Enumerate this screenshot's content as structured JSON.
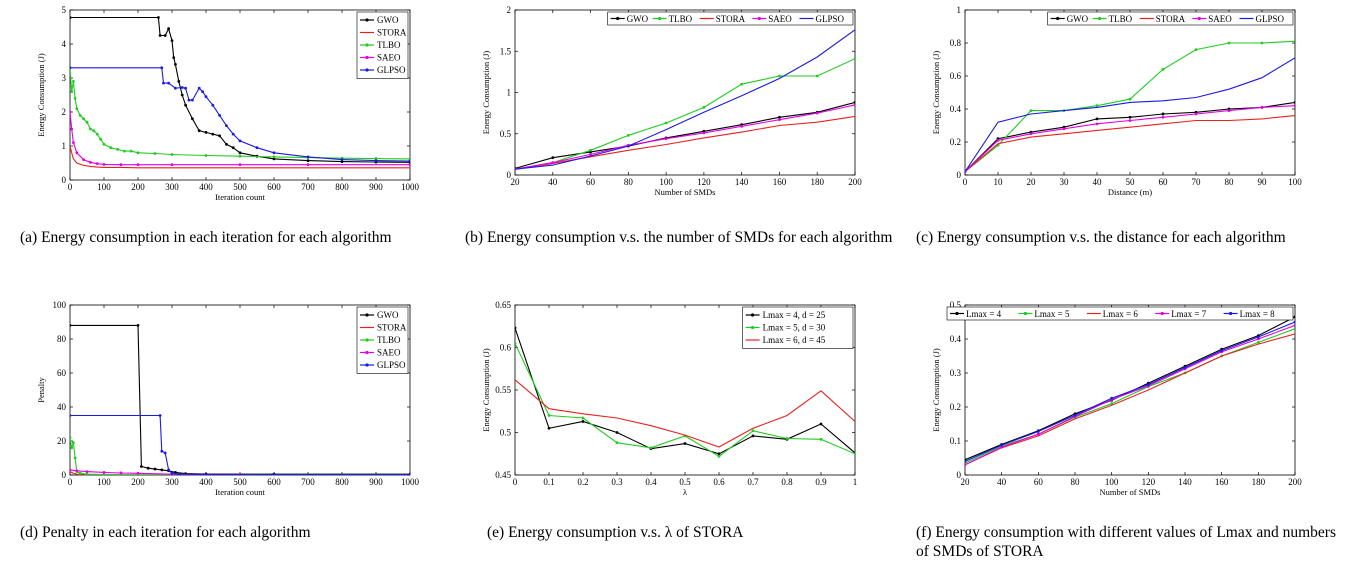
{
  "chart_data": [
    {
      "id": "a",
      "type": "line",
      "caption": "(a) Energy consumption in each iteration for each algorithm",
      "xlabel": "Iteration count",
      "ylabel": "Energy Consumption (J)",
      "xlim": [
        0,
        1000
      ],
      "ylim": [
        0,
        5
      ],
      "xticks": [
        0,
        100,
        200,
        300,
        400,
        500,
        600,
        700,
        800,
        900,
        1000
      ],
      "yticks": [
        0,
        1,
        2,
        3,
        4,
        5
      ],
      "legend_position": "top-right",
      "series": [
        {
          "name": "GWO",
          "color": "#000000",
          "marker": "dot",
          "x": [
            0,
            260,
            265,
            280,
            290,
            300,
            305,
            310,
            320,
            330,
            340,
            360,
            380,
            400,
            420,
            440,
            460,
            480,
            500,
            550,
            600,
            700,
            800,
            900,
            1000
          ],
          "y": [
            4.78,
            4.78,
            4.25,
            4.25,
            4.45,
            4.1,
            3.6,
            3.4,
            2.9,
            2.5,
            2.2,
            1.8,
            1.45,
            1.4,
            1.35,
            1.3,
            1.05,
            0.95,
            0.8,
            0.7,
            0.62,
            0.57,
            0.54,
            0.53,
            0.52
          ]
        },
        {
          "name": "STORA",
          "color": "#e8211f",
          "marker": "none",
          "x": [
            0,
            5,
            10,
            20,
            40,
            60,
            80,
            100,
            150,
            200,
            300,
            500,
            700,
            1000
          ],
          "y": [
            1.0,
            0.8,
            0.62,
            0.5,
            0.43,
            0.4,
            0.38,
            0.37,
            0.37,
            0.36,
            0.36,
            0.36,
            0.36,
            0.36
          ]
        },
        {
          "name": "TLBO",
          "color": "#1fcc1f",
          "marker": "dot",
          "x": [
            0,
            5,
            10,
            15,
            20,
            30,
            40,
            50,
            60,
            70,
            80,
            90,
            100,
            120,
            140,
            160,
            180,
            200,
            250,
            300,
            400,
            500,
            600,
            700,
            800,
            900,
            1000
          ],
          "y": [
            3.3,
            2.6,
            2.9,
            2.4,
            2.1,
            1.9,
            1.8,
            1.7,
            1.5,
            1.45,
            1.35,
            1.2,
            1.05,
            0.95,
            0.9,
            0.85,
            0.85,
            0.8,
            0.78,
            0.75,
            0.72,
            0.7,
            0.68,
            0.66,
            0.64,
            0.63,
            0.62
          ]
        },
        {
          "name": "SAEO",
          "color": "#e600e6",
          "marker": "dot",
          "x": [
            0,
            5,
            10,
            20,
            40,
            60,
            80,
            100,
            150,
            200,
            300,
            500,
            700,
            1000
          ],
          "y": [
            2.0,
            1.5,
            1.1,
            0.8,
            0.6,
            0.52,
            0.48,
            0.46,
            0.45,
            0.45,
            0.45,
            0.45,
            0.45,
            0.45
          ]
        },
        {
          "name": "GLPSO",
          "color": "#1a1ae6",
          "marker": "dot",
          "x": [
            0,
            270,
            275,
            290,
            310,
            330,
            340,
            350,
            360,
            380,
            390,
            400,
            420,
            440,
            460,
            480,
            500,
            550,
            600,
            700,
            800,
            900,
            1000
          ],
          "y": [
            3.3,
            3.3,
            2.85,
            2.85,
            2.7,
            2.72,
            2.7,
            2.35,
            2.35,
            2.7,
            2.6,
            2.45,
            2.2,
            1.9,
            1.6,
            1.35,
            1.15,
            0.95,
            0.8,
            0.68,
            0.6,
            0.57,
            0.56
          ]
        }
      ]
    },
    {
      "id": "b",
      "type": "line",
      "caption": "(b) Energy consumption v.s. the number of SMDs for each algorithm",
      "xlabel": "Number of SMDs",
      "ylabel": "Energy Consumption (J)",
      "xlim": [
        20,
        200
      ],
      "ylim": [
        0,
        2
      ],
      "xticks": [
        20,
        40,
        60,
        80,
        100,
        120,
        140,
        160,
        180,
        200
      ],
      "yticks": [
        0,
        0.5,
        1,
        1.5,
        2
      ],
      "legend_position": "top (horizontal)",
      "x": [
        20,
        40,
        60,
        80,
        100,
        120,
        140,
        160,
        180,
        200
      ],
      "series": [
        {
          "name": "GWO",
          "color": "#000000",
          "marker": "dot",
          "values": [
            0.08,
            0.21,
            0.28,
            0.35,
            0.45,
            0.53,
            0.61,
            0.7,
            0.76,
            0.88
          ]
        },
        {
          "name": "TLBO",
          "color": "#1fcc1f",
          "marker": "dot",
          "values": [
            0.07,
            0.15,
            0.3,
            0.48,
            0.63,
            0.82,
            1.1,
            1.2,
            1.2,
            1.41
          ]
        },
        {
          "name": "STORA",
          "color": "#e8211f",
          "marker": "none",
          "values": [
            0.07,
            0.14,
            0.22,
            0.3,
            0.37,
            0.45,
            0.52,
            0.6,
            0.64,
            0.71
          ]
        },
        {
          "name": "SAEO",
          "color": "#e600e6",
          "marker": "dot",
          "values": [
            0.07,
            0.15,
            0.25,
            0.36,
            0.44,
            0.51,
            0.59,
            0.67,
            0.75,
            0.85
          ]
        },
        {
          "name": "GLPSO",
          "color": "#1a1ae6",
          "marker": "none",
          "values": [
            0.07,
            0.12,
            0.23,
            0.35,
            0.55,
            0.76,
            0.96,
            1.17,
            1.43,
            1.76
          ]
        }
      ]
    },
    {
      "id": "c",
      "type": "line",
      "caption": "(c) Energy consumption v.s. the distance for each algorithm",
      "xlabel": "Distance (m)",
      "ylabel": "Energy Consumption (J)",
      "xlim": [
        0,
        100
      ],
      "ylim": [
        0,
        1
      ],
      "xticks": [
        0,
        10,
        20,
        30,
        40,
        50,
        60,
        70,
        80,
        90,
        100
      ],
      "yticks": [
        0,
        0.2,
        0.4,
        0.6,
        0.8,
        1
      ],
      "legend_position": "top (horizontal)",
      "x": [
        0,
        10,
        20,
        30,
        40,
        50,
        60,
        70,
        80,
        90,
        100
      ],
      "series": [
        {
          "name": "GWO",
          "color": "#000000",
          "marker": "dot",
          "values": [
            0.02,
            0.22,
            0.26,
            0.29,
            0.34,
            0.35,
            0.37,
            0.38,
            0.4,
            0.41,
            0.44
          ]
        },
        {
          "name": "TLBO",
          "color": "#1fcc1f",
          "marker": "dot",
          "values": [
            0.02,
            0.18,
            0.39,
            0.39,
            0.42,
            0.46,
            0.64,
            0.76,
            0.8,
            0.8,
            0.81
          ]
        },
        {
          "name": "STORA",
          "color": "#e8211f",
          "marker": "none",
          "values": [
            0.02,
            0.19,
            0.23,
            0.25,
            0.27,
            0.29,
            0.31,
            0.33,
            0.33,
            0.34,
            0.36
          ]
        },
        {
          "name": "SAEO",
          "color": "#e600e6",
          "marker": "dot",
          "values": [
            0.02,
            0.21,
            0.25,
            0.28,
            0.31,
            0.33,
            0.35,
            0.37,
            0.39,
            0.41,
            0.42
          ]
        },
        {
          "name": "GLPSO",
          "color": "#1a1ae6",
          "marker": "none",
          "values": [
            0.02,
            0.32,
            0.37,
            0.39,
            0.41,
            0.44,
            0.45,
            0.47,
            0.52,
            0.59,
            0.71
          ]
        }
      ]
    },
    {
      "id": "d",
      "type": "line",
      "caption": "(d) Penalty in each iteration for each algorithm",
      "xlabel": "Iteration count",
      "ylabel": "Penalty",
      "xlim": [
        0,
        1000
      ],
      "ylim": [
        0,
        100
      ],
      "xticks": [
        0,
        100,
        200,
        300,
        400,
        500,
        600,
        700,
        800,
        900,
        1000
      ],
      "yticks": [
        0,
        20,
        40,
        60,
        80,
        100
      ],
      "legend_position": "top-right",
      "series": [
        {
          "name": "GWO",
          "color": "#000000",
          "marker": "dot",
          "x": [
            0,
            200,
            210,
            230,
            250,
            270,
            290,
            310,
            340,
            400,
            600,
            1000
          ],
          "y": [
            88,
            88,
            5,
            4,
            3.5,
            3,
            2.5,
            1.5,
            0.8,
            0.6,
            0.5,
            0.5
          ]
        },
        {
          "name": "STORA",
          "color": "#e8211f",
          "marker": "none",
          "x": [
            0,
            5,
            10,
            20,
            50,
            100,
            200,
            1000
          ],
          "y": [
            2,
            1.5,
            1,
            0.5,
            0.2,
            0.1,
            0,
            0
          ]
        },
        {
          "name": "TLBO",
          "color": "#1fcc1f",
          "marker": "dot",
          "x": [
            0,
            5,
            10,
            15,
            20,
            30,
            50,
            100,
            200,
            400,
            1000
          ],
          "y": [
            22,
            16,
            19,
            10,
            2,
            1,
            0.5,
            0.3,
            0.2,
            0.1,
            0.1
          ]
        },
        {
          "name": "SAEO",
          "color": "#e600e6",
          "marker": "dot",
          "x": [
            0,
            20,
            50,
            100,
            150,
            200,
            300,
            500,
            1000
          ],
          "y": [
            3,
            2.5,
            2,
            1.5,
            1.2,
            1,
            0.5,
            0.3,
            0.3
          ]
        },
        {
          "name": "GLPSO",
          "color": "#1a1ae6",
          "marker": "dot",
          "x": [
            0,
            265,
            270,
            280,
            290,
            300,
            320,
            400,
            600,
            1000
          ],
          "y": [
            35,
            35,
            14,
            13,
            3,
            1,
            0.5,
            0.3,
            0.3,
            0.3
          ]
        }
      ]
    },
    {
      "id": "e",
      "type": "line",
      "caption": "(e) Energy consumption v.s. λ of STORA",
      "xlabel": "λ",
      "ylabel": "Energy Consumption (J)",
      "xlim": [
        0,
        1
      ],
      "ylim": [
        0.45,
        0.65
      ],
      "xticks": [
        0,
        0.1,
        0.2,
        0.3,
        0.4,
        0.5,
        0.6,
        0.7,
        0.8,
        0.9,
        1
      ],
      "yticks": [
        0.45,
        0.5,
        0.55,
        0.6,
        0.65
      ],
      "legend_position": "top-right",
      "x": [
        0,
        0.1,
        0.2,
        0.3,
        0.4,
        0.5,
        0.6,
        0.7,
        0.8,
        0.9,
        1
      ],
      "series": [
        {
          "name": "Lmax = 4, d = 25",
          "color": "#000000",
          "marker": "dot",
          "values": [
            0.623,
            0.505,
            0.513,
            0.5,
            0.481,
            0.487,
            0.475,
            0.496,
            0.492,
            0.51,
            0.476
          ]
        },
        {
          "name": "Lmax = 5, d = 30",
          "color": "#1fcc1f",
          "marker": "dot",
          "values": [
            0.605,
            0.52,
            0.517,
            0.488,
            0.482,
            0.496,
            0.472,
            0.502,
            0.493,
            0.492,
            0.475
          ]
        },
        {
          "name": "Lmax = 6, d = 45",
          "color": "#e8211f",
          "marker": "none",
          "values": [
            0.562,
            0.528,
            0.522,
            0.517,
            0.508,
            0.497,
            0.483,
            0.505,
            0.52,
            0.549,
            0.513
          ]
        }
      ]
    },
    {
      "id": "f",
      "type": "line",
      "caption": "(f) Energy consumption with different values of Lmax and numbers of SMDs of STORA",
      "xlabel": "Number of SMDs",
      "ylabel": "Energy Consumption (J)",
      "xlim": [
        20,
        200
      ],
      "ylim": [
        0,
        0.5
      ],
      "xticks": [
        20,
        40,
        60,
        80,
        100,
        120,
        140,
        160,
        180,
        200
      ],
      "yticks": [
        0,
        0.1,
        0.2,
        0.3,
        0.4,
        0.5
      ],
      "legend_position": "top (horizontal)",
      "x": [
        20,
        40,
        60,
        80,
        100,
        120,
        140,
        160,
        180,
        200
      ],
      "series": [
        {
          "name": "Lmax = 4",
          "color": "#000000",
          "marker": "dot",
          "values": [
            0.045,
            0.09,
            0.13,
            0.18,
            0.22,
            0.27,
            0.32,
            0.37,
            0.41,
            0.465
          ]
        },
        {
          "name": "Lmax = 5",
          "color": "#1fcc1f",
          "marker": "dot",
          "values": [
            0.035,
            0.085,
            0.12,
            0.17,
            0.21,
            0.26,
            0.3,
            0.35,
            0.39,
            0.43
          ]
        },
        {
          "name": "Lmax = 6",
          "color": "#e8211f",
          "marker": "none",
          "values": [
            0.03,
            0.08,
            0.115,
            0.165,
            0.205,
            0.25,
            0.3,
            0.35,
            0.385,
            0.415
          ]
        },
        {
          "name": "Lmax = 7",
          "color": "#e600e6",
          "marker": "dot",
          "values": [
            0.03,
            0.082,
            0.12,
            0.172,
            0.222,
            0.262,
            0.312,
            0.362,
            0.4,
            0.44
          ]
        },
        {
          "name": "Lmax = 8",
          "color": "#1a1ae6",
          "marker": "dot",
          "values": [
            0.04,
            0.088,
            0.128,
            0.176,
            0.226,
            0.266,
            0.316,
            0.366,
            0.406,
            0.45
          ]
        }
      ]
    }
  ]
}
